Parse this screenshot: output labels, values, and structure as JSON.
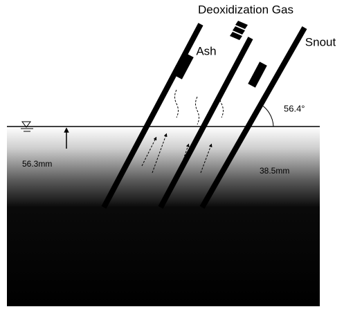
{
  "labels": {
    "gas": "Deoxidization Gas",
    "ash": "Ash",
    "snout": "Snout",
    "angle": "56.4°",
    "left_depth": "56.3mm",
    "right_depth": "38.5mm"
  }
}
